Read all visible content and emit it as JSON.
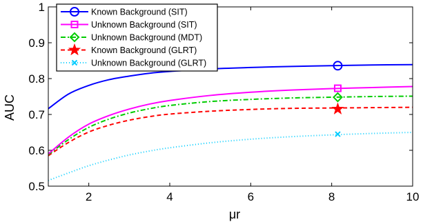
{
  "chart_data": {
    "type": "line",
    "xlabel": "μr",
    "ylabel": "AUC",
    "xlim": [
      1,
      10
    ],
    "ylim": [
      0.5,
      1
    ],
    "xticks": [
      2,
      4,
      6,
      8,
      10
    ],
    "yticks": [
      0.5,
      0.6,
      0.7,
      0.8,
      0.9,
      1
    ],
    "x": [
      1,
      1.5,
      2,
      2.5,
      3,
      3.5,
      4,
      5,
      6,
      7,
      8,
      9,
      10
    ],
    "marker_x": 8.15,
    "grid": false,
    "legend_position": "top-left",
    "series": [
      {
        "name": "Known Background (SIT)",
        "color": "#0000ff",
        "dash": "",
        "marker": "circle",
        "values": [
          0.716,
          0.757,
          0.781,
          0.797,
          0.807,
          0.815,
          0.82,
          0.827,
          0.831,
          0.834,
          0.836,
          0.838,
          0.839
        ],
        "marker_y": 0.836
      },
      {
        "name": "Unknown Background (SIT)",
        "color": "#ff00ff",
        "dash": "",
        "marker": "square",
        "values": [
          0.59,
          0.637,
          0.673,
          0.697,
          0.715,
          0.729,
          0.739,
          0.753,
          0.762,
          0.768,
          0.772,
          0.775,
          0.778
        ],
        "marker_y": 0.773
      },
      {
        "name": "Unknown Background (MDT)",
        "color": "#00cc00",
        "dash": "7,3,2,3",
        "marker": "diamond",
        "values": [
          0.588,
          0.63,
          0.664,
          0.687,
          0.704,
          0.716,
          0.725,
          0.736,
          0.742,
          0.746,
          0.748,
          0.75,
          0.751
        ],
        "marker_y": 0.748
      },
      {
        "name": "Known Background (GLRT)",
        "color": "#ff0000",
        "dash": "6,4",
        "marker": "star",
        "values": [
          0.585,
          0.622,
          0.651,
          0.67,
          0.684,
          0.694,
          0.701,
          0.709,
          0.714,
          0.717,
          0.718,
          0.719,
          0.72
        ],
        "marker_y": 0.715
      },
      {
        "name": "Unknown Background (GLRT)",
        "color": "#00ccff",
        "dash": "1,3",
        "marker": "x",
        "values": [
          0.516,
          0.537,
          0.557,
          0.573,
          0.587,
          0.598,
          0.607,
          0.621,
          0.631,
          0.638,
          0.643,
          0.647,
          0.65
        ],
        "marker_y": 0.645
      }
    ]
  }
}
